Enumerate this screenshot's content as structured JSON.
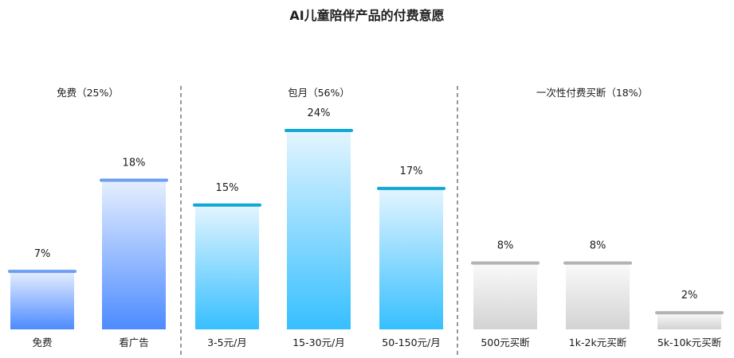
{
  "chart_data": {
    "type": "bar",
    "title": "AI儿童陪伴产品的付费意愿",
    "value_unit": "%",
    "ylim": [
      0,
      26
    ],
    "grid": false,
    "groups": [
      {
        "label": "免费（25%）",
        "color_scheme": "blue",
        "categories": [
          "免费",
          "看广告"
        ],
        "values": [
          7,
          18
        ]
      },
      {
        "label": "包月（56%）",
        "color_scheme": "cyan",
        "categories": [
          "3-5元/月",
          "15-30元/月",
          "50-150元/月"
        ],
        "values": [
          15,
          24,
          17
        ]
      },
      {
        "label": "一次性付费买断（18%）",
        "color_scheme": "gray",
        "categories": [
          "500元买断",
          "1k-2k元买断",
          "5k-10k元买断"
        ],
        "values": [
          8,
          8,
          2
        ]
      }
    ]
  },
  "colors": {
    "blue_top": "#e6efff",
    "blue_bottom": "#4d8bff",
    "blue_cap": "#6c9ef2",
    "cyan_top": "#e4f5ff",
    "cyan_bottom": "#36bfff",
    "cyan_cap": "#11a8d6",
    "gray_top": "#fafafa",
    "gray_bottom": "#d3d3d3",
    "gray_cap": "#b3b3b3",
    "divider": "#555555"
  }
}
